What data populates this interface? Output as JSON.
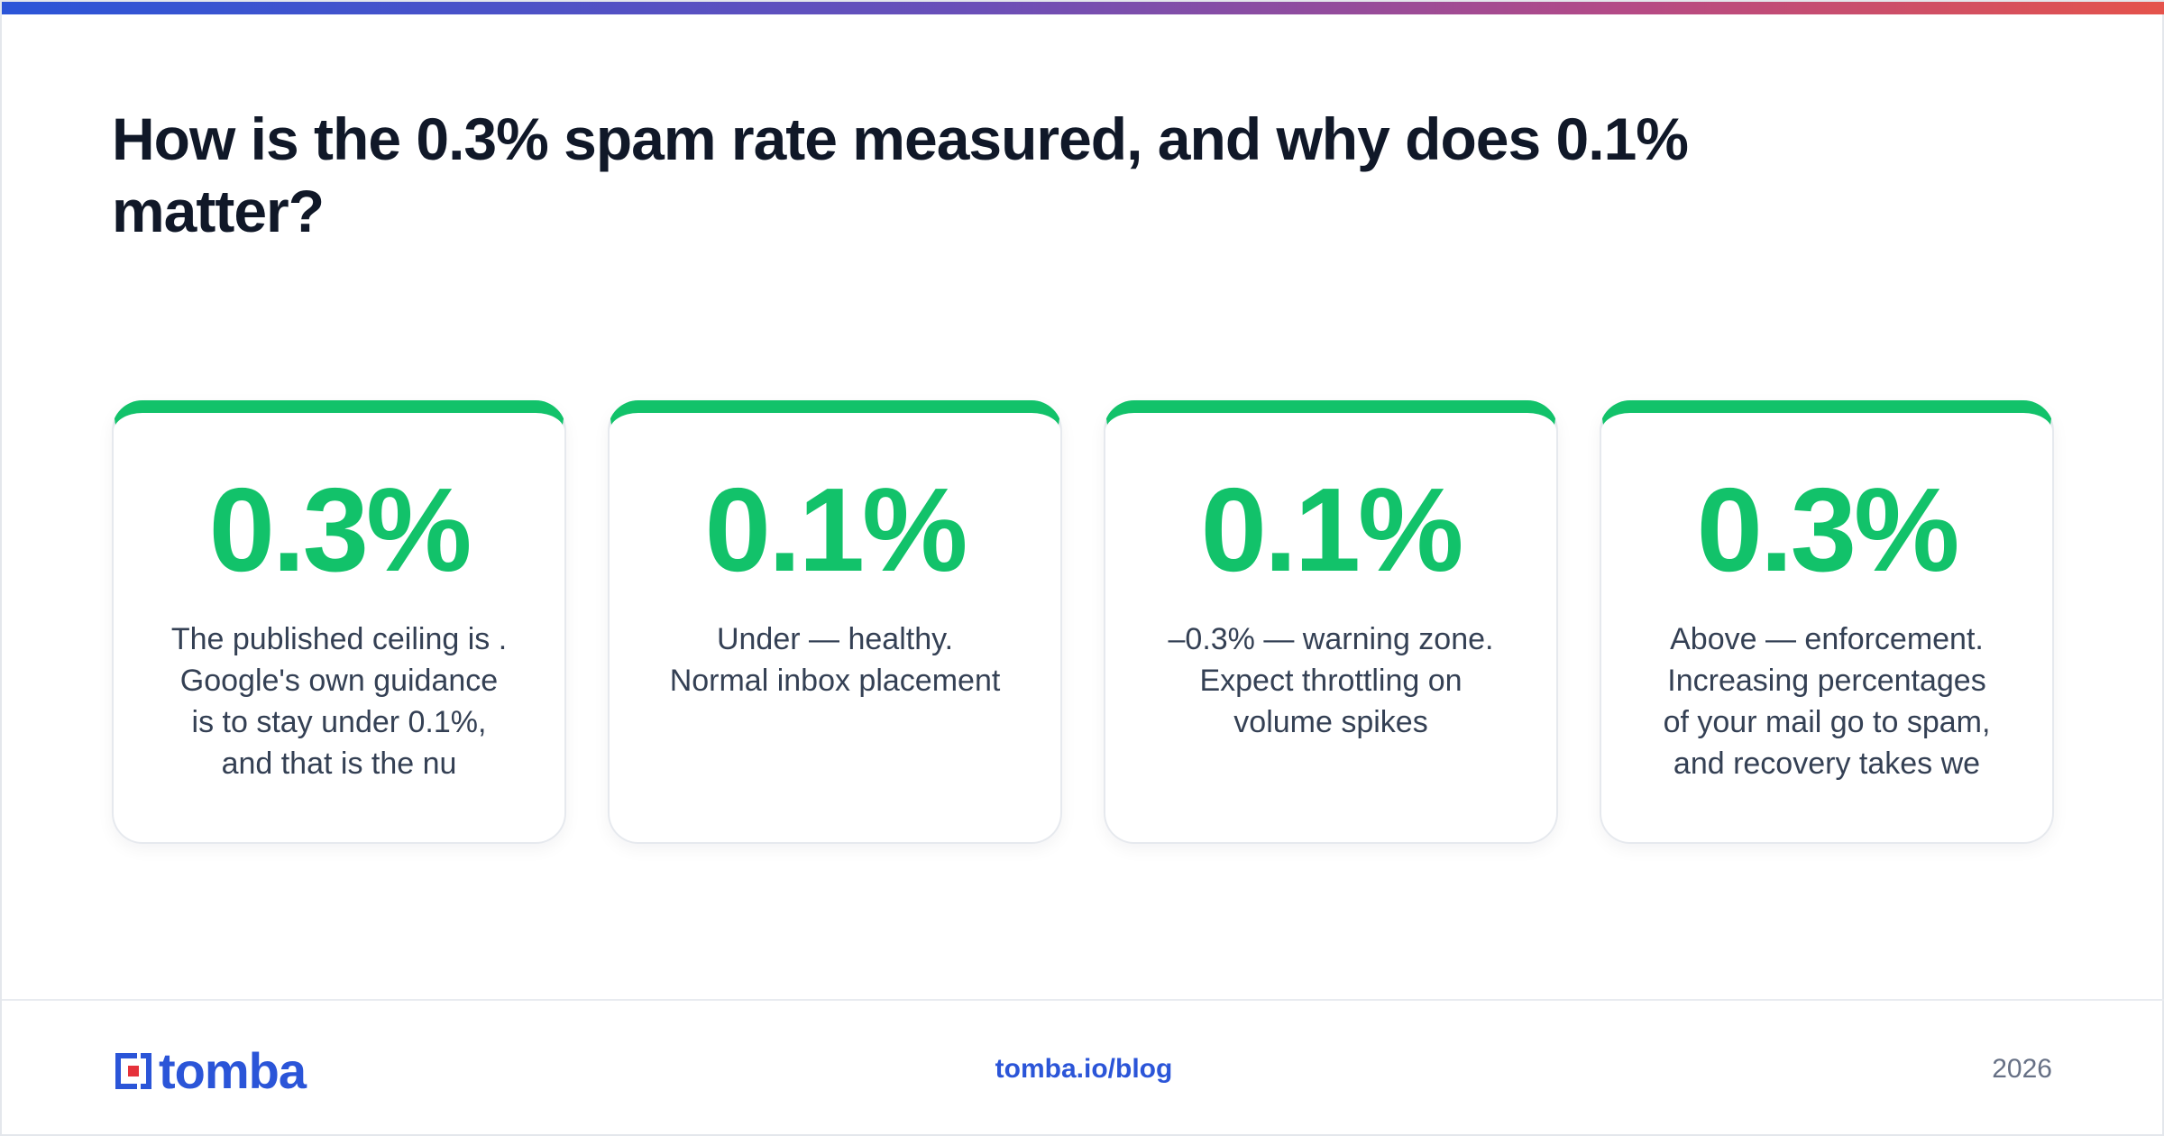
{
  "header": {
    "title": "How is the 0.3% spam rate measured, and why does 0.1% matter?"
  },
  "colors": {
    "accent_green": "#12c26a",
    "brand_blue": "#2b55d8",
    "brand_red": "#e5323b",
    "gradient": [
      "#2b55d8",
      "#6a4fb8",
      "#b44a86",
      "#e5534b"
    ]
  },
  "cards": [
    {
      "value": "0.3%",
      "text": "The published ceiling is .\nGoogle's own guidance\nis to stay under 0.1%,\nand that is the nu"
    },
    {
      "value": "0.1%",
      "text": "Under — healthy.\nNormal inbox placement"
    },
    {
      "value": "0.1%",
      "text": "–0.3% — warning zone.\nExpect throttling on\nvolume spikes"
    },
    {
      "value": "0.3%",
      "text": "Above — enforcement.\nIncreasing percentages\nof your mail go to spam,\nand recovery takes we"
    }
  ],
  "footer": {
    "logo_text": "tomba",
    "logo_icon": "tomba-logo-icon",
    "link": "tomba.io/blog",
    "year": "2026"
  }
}
